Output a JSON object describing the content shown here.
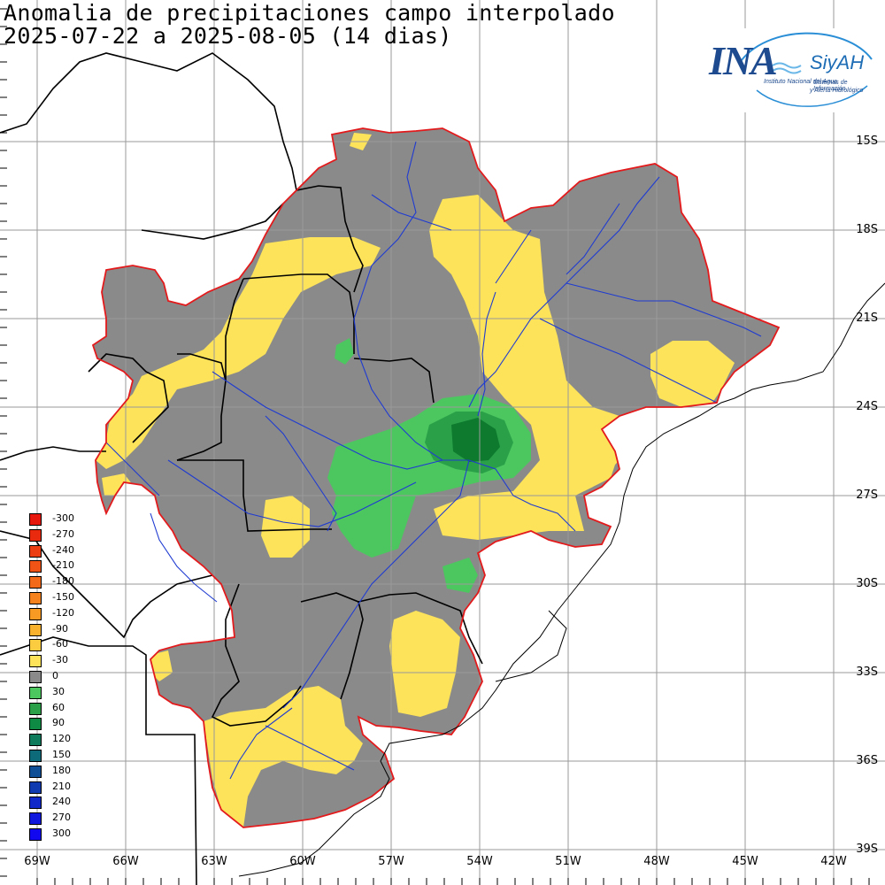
{
  "map": {
    "title_line1": "Anomalia de precipitaciones campo interpolado",
    "title_line2": "2025-07-22 a 2025-08-05 (14 dias)",
    "colors": {
      "gray": "#8a8a8a",
      "yellow": "#fce35a",
      "light_green": "#4cc760",
      "mid_green": "#2aa048",
      "dark_green": "#0d7a2e",
      "basin_border": "#e31a1c",
      "rivers": "#1f3bd1",
      "borders": "#000000",
      "grid": "#9a9a9a"
    },
    "lat_labels": [
      "15S",
      "18S",
      "21S",
      "24S",
      "27S",
      "30S",
      "33S",
      "36S",
      "39S"
    ],
    "lon_labels": [
      "69W",
      "66W",
      "63W",
      "60W",
      "57W",
      "54W",
      "51W",
      "48W",
      "45W",
      "42W"
    ]
  },
  "legend": {
    "items": [
      {
        "label": "-300",
        "color": "#e8170d"
      },
      {
        "label": "-270",
        "color": "#ea2a0f"
      },
      {
        "label": "-240",
        "color": "#ec3d12"
      },
      {
        "label": "-210",
        "color": "#ef5315"
      },
      {
        "label": "-180",
        "color": "#f26a19"
      },
      {
        "label": "-150",
        "color": "#f5821d"
      },
      {
        "label": "-120",
        "color": "#f79a24"
      },
      {
        "label": "-90",
        "color": "#f9b22e"
      },
      {
        "label": "-60",
        "color": "#fbcb40"
      },
      {
        "label": "-30",
        "color": "#fce35a"
      },
      {
        "label": "0",
        "color": "#8a8a8a"
      },
      {
        "label": "30",
        "color": "#4cc760"
      },
      {
        "label": "60",
        "color": "#2aa048"
      },
      {
        "label": "90",
        "color": "#0f8a44"
      },
      {
        "label": "120",
        "color": "#0d7b5c"
      },
      {
        "label": "150",
        "color": "#0d6a78"
      },
      {
        "label": "180",
        "color": "#0e4f96"
      },
      {
        "label": "210",
        "color": "#0f3ab0"
      },
      {
        "label": "240",
        "color": "#1028c8"
      },
      {
        "label": "270",
        "color": "#1118dd"
      },
      {
        "label": "300",
        "color": "#1208f0"
      }
    ]
  },
  "logo": {
    "name": "INA",
    "product": "SiyAH",
    "institution": "Instituto Nacional del Agua",
    "system_line1": "Sistemas de Información",
    "system_line2": "y Alerta Hidrológico"
  }
}
